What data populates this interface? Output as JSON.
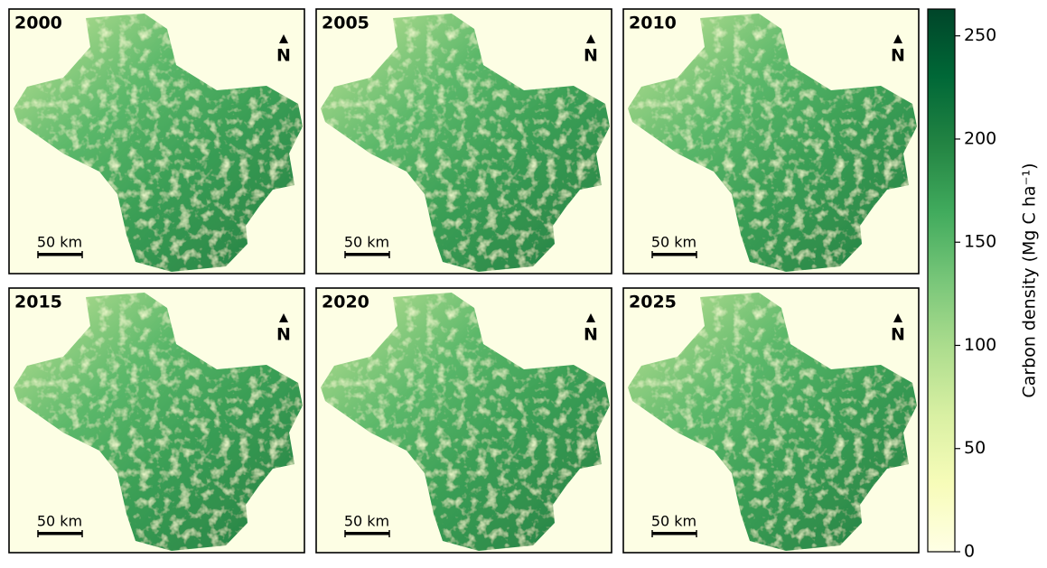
{
  "panels": [
    {
      "year": "2000",
      "north": "N",
      "scale": "50 km"
    },
    {
      "year": "2005",
      "north": "N",
      "scale": "50 km"
    },
    {
      "year": "2010",
      "north": "N",
      "scale": "50 km"
    },
    {
      "year": "2015",
      "north": "N",
      "scale": "50 km"
    },
    {
      "year": "2020",
      "north": "N",
      "scale": "50 km"
    },
    {
      "year": "2025",
      "north": "N",
      "scale": "50 km"
    }
  ],
  "colorbar": {
    "label": "Carbon density (Mg C ha⁻¹)",
    "range": [
      0,
      263
    ],
    "ticks": [
      0,
      50,
      100,
      150,
      200,
      250
    ]
  }
}
